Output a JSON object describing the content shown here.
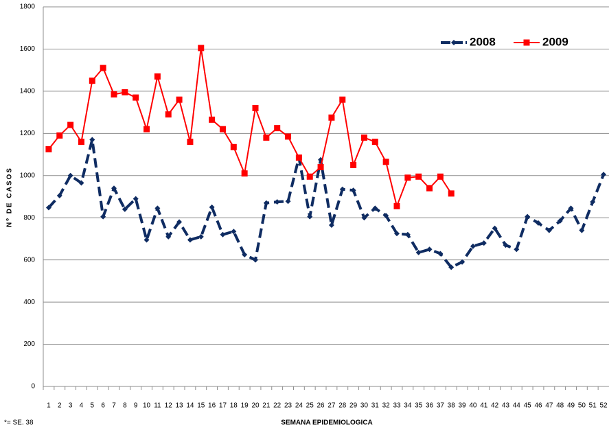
{
  "chart_data": {
    "type": "line",
    "y_label": "Nº DE CASOS",
    "x_label": "SEMANA EPIDEMIOLOGICA",
    "annotation": "*= SE. 38",
    "categories": [
      "1",
      "2",
      "3",
      "4",
      "5",
      "6",
      "7",
      "8",
      "9",
      "10",
      "11",
      "12",
      "13",
      "14",
      "15",
      "16",
      "17",
      "18",
      "19",
      "20",
      "21",
      "22",
      "23",
      "24",
      "25",
      "26",
      "27",
      "28",
      "29",
      "30",
      "31",
      "32",
      "33",
      "34",
      "35",
      "36",
      "37",
      "38",
      "39",
      "40",
      "41",
      "42",
      "43",
      "44",
      "45",
      "46",
      "47",
      "48",
      "49",
      "50",
      "51",
      "52"
    ],
    "series": [
      {
        "name": "2008",
        "color": "#0f2c62",
        "line_style": "dashed",
        "marker": "diamond",
        "values": [
          848,
          905,
          1000,
          965,
          1170,
          805,
          940,
          840,
          890,
          695,
          845,
          710,
          780,
          695,
          710,
          850,
          720,
          735,
          625,
          600,
          870,
          875,
          878,
          1085,
          805,
          1075,
          765,
          935,
          930,
          800,
          845,
          810,
          725,
          720,
          635,
          650,
          630,
          565,
          590,
          665,
          680,
          750,
          670,
          650,
          805,
          775,
          740,
          785,
          845,
          740,
          875,
          1005
        ]
      },
      {
        "name": "2009",
        "color": "#ff0000",
        "line_style": "solid",
        "marker": "square",
        "values": [
          1125,
          1190,
          1240,
          1160,
          1450,
          1510,
          1385,
          1395,
          1370,
          1220,
          1470,
          1290,
          1360,
          1160,
          1605,
          1265,
          1220,
          1135,
          1010,
          1320,
          1180,
          1225,
          1185,
          1085,
          995,
          1040,
          1275,
          1360,
          1050,
          1180,
          1160,
          1065,
          855,
          990,
          995,
          940,
          995,
          915,
          null,
          null,
          null,
          null,
          null,
          null,
          null,
          null,
          null,
          null,
          null,
          null,
          null,
          null
        ]
      }
    ],
    "ylim": [
      0,
      1800
    ],
    "yticks": [
      0,
      200,
      400,
      600,
      800,
      1000,
      1200,
      1400,
      1600,
      1800
    ],
    "grid": true,
    "legend": "top-right"
  }
}
